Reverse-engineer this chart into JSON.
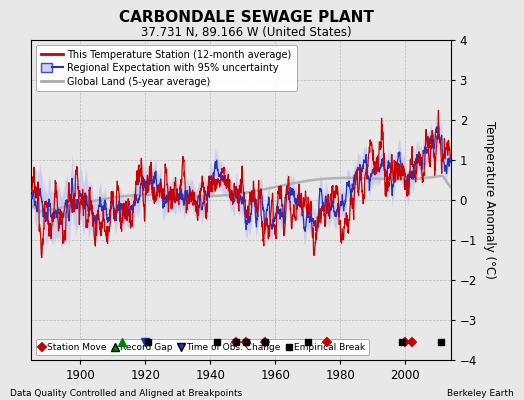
{
  "title": "CARBONDALE SEWAGE PLANT",
  "subtitle": "37.731 N, 89.166 W (United States)",
  "ylabel": "Temperature Anomaly (°C)",
  "footer_left": "Data Quality Controlled and Aligned at Breakpoints",
  "footer_right": "Berkeley Earth",
  "xlim": [
    1885,
    2014
  ],
  "ylim": [
    -4,
    4
  ],
  "yticks": [
    -4,
    -3,
    -2,
    -1,
    0,
    1,
    2,
    3,
    4
  ],
  "xticks": [
    1900,
    1920,
    1940,
    1960,
    1980,
    2000
  ],
  "bg_color": "#e8e8e8",
  "plot_bg_color": "#e8e8e8",
  "red_color": "#cc0000",
  "blue_color": "#2233bb",
  "fill_color": "#c8c8ee",
  "gray_color": "#aaaaaa",
  "station_move_years": [
    1948,
    1951,
    1957,
    1976,
    2000,
    2002
  ],
  "record_gap_years": [
    1913
  ],
  "obs_change_years": [
    1920
  ],
  "empirical_break_years": [
    1921,
    1942,
    1948,
    1951,
    1957,
    1970,
    1999,
    2011
  ],
  "legend_line_red": "This Temperature Station (12-month average)",
  "legend_line_blue": "Regional Expectation with 95% uncertainty",
  "legend_line_gray": "Global Land (5-year average)",
  "legend_marker_red": "Station Move",
  "legend_marker_green": "Record Gap",
  "legend_marker_blue": "Time of Obs. Change",
  "legend_marker_black": "Empirical Break",
  "seed": 12345
}
